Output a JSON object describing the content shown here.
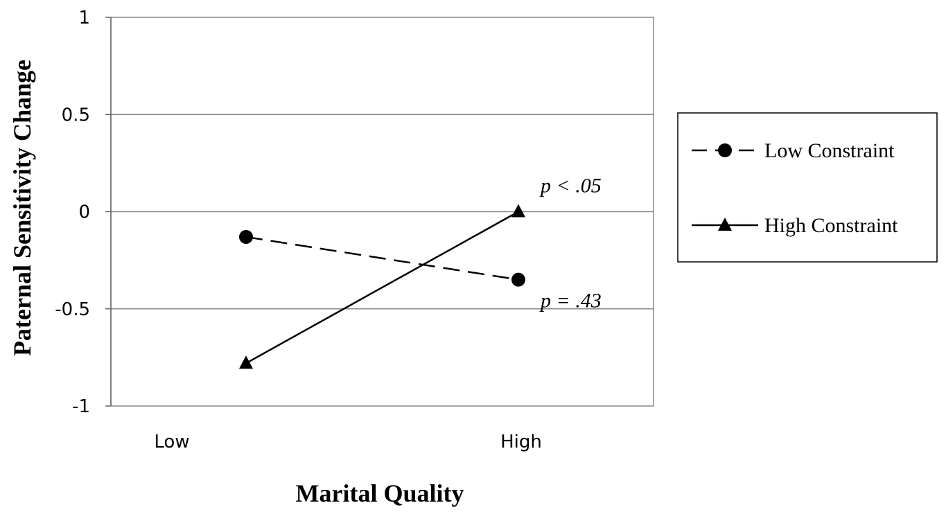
{
  "chart_data": {
    "type": "line",
    "title": "",
    "xlabel": "Marital Quality",
    "ylabel": "Paternal Sensitivity Change",
    "categories": [
      "Low",
      "High"
    ],
    "ylim": [
      -1,
      1
    ],
    "yticks": [
      1,
      0.5,
      0,
      -0.5,
      -1
    ],
    "ytick_labels": [
      "1",
      "0.5",
      "0",
      "-0.5",
      "-1"
    ],
    "grid": "horizontal",
    "legend_position": "right",
    "series": [
      {
        "name": "Low Constraint",
        "values": [
          -0.13,
          -0.35
        ],
        "marker": "circle",
        "line_style": "dashed",
        "color": "#000000"
      },
      {
        "name": "High Constraint",
        "values": [
          -0.78,
          0.0
        ],
        "marker": "triangle",
        "line_style": "solid",
        "color": "#000000"
      }
    ],
    "annotations": [
      {
        "text": "p < .05",
        "series": 1,
        "point": 1
      },
      {
        "text": "p = .43",
        "series": 0,
        "point": 1
      }
    ]
  }
}
